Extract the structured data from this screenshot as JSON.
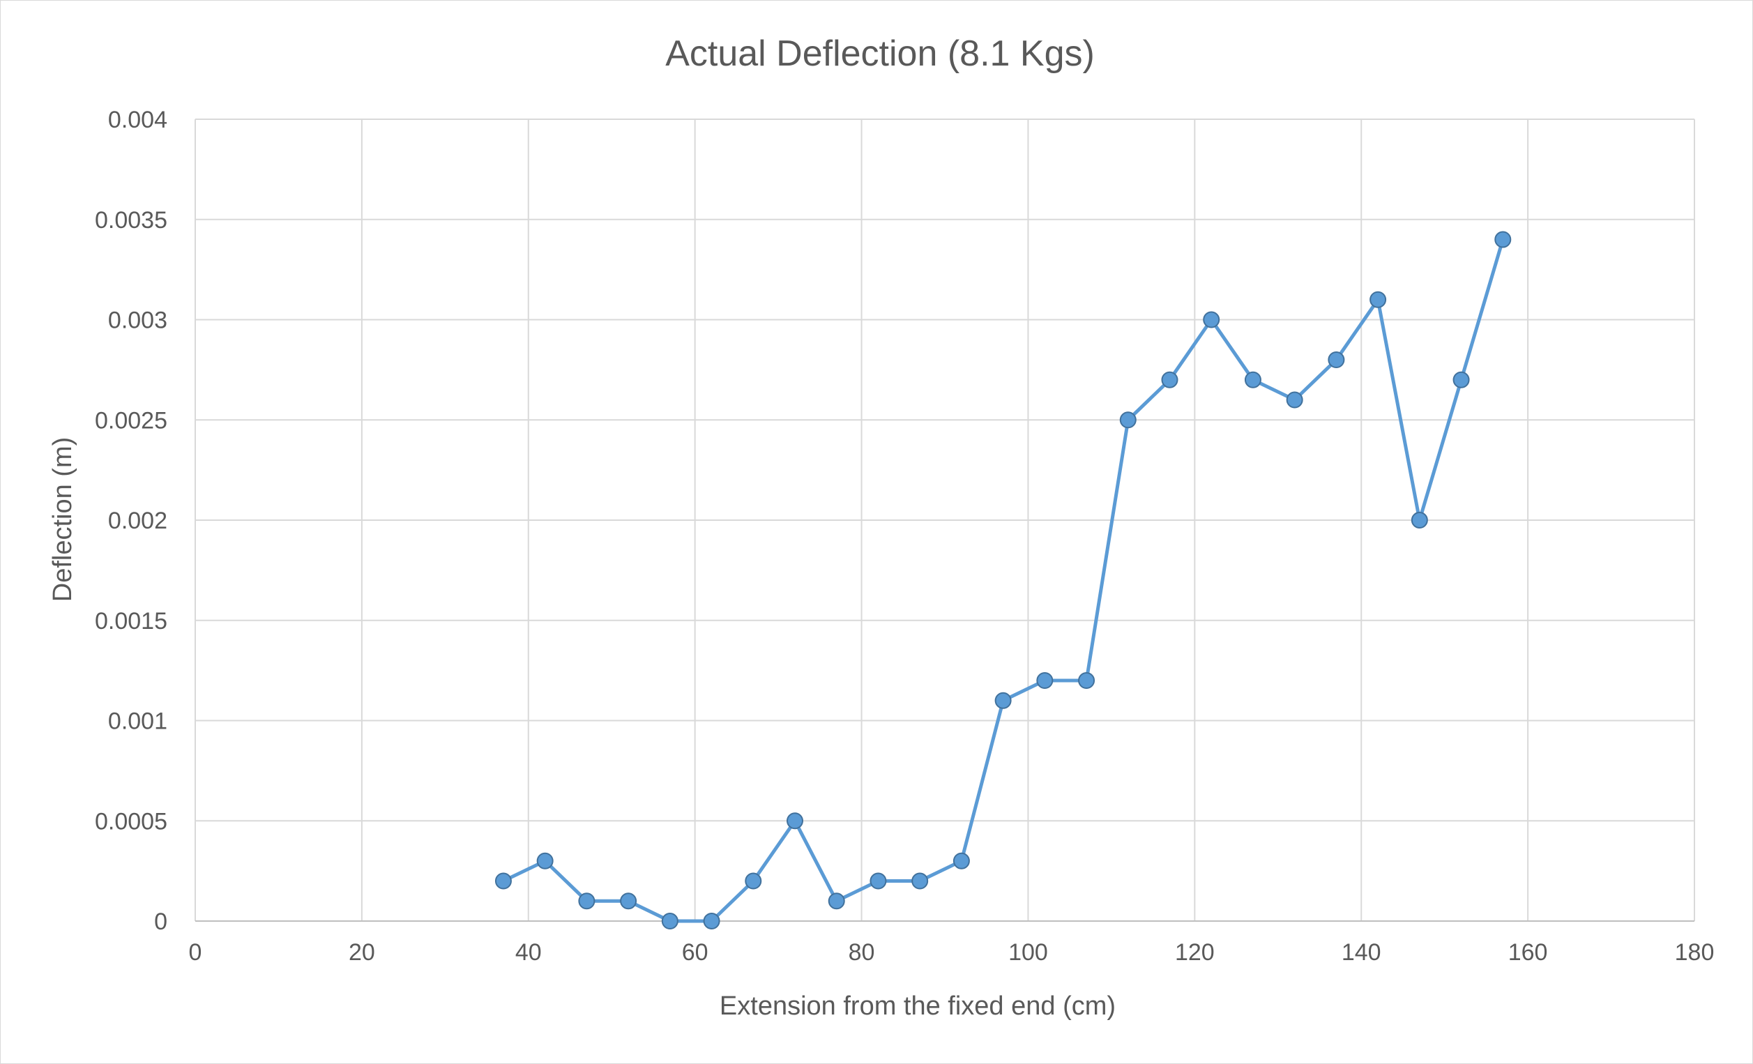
{
  "chart_data": {
    "type": "scatter",
    "title": "Actual Deflection (8.1 Kgs)",
    "xlabel": "Extension from the fixed end (cm)",
    "ylabel": "Deflection (m)",
    "xlim": [
      0,
      180
    ],
    "ylim": [
      0,
      0.004
    ],
    "x_ticks": [
      "0",
      "20",
      "40",
      "60",
      "80",
      "100",
      "120",
      "140",
      "160",
      "180"
    ],
    "y_ticks": [
      "0",
      "0.0005",
      "0.001",
      "0.0015",
      "0.002",
      "0.0025",
      "0.003",
      "0.0035",
      "0.004"
    ],
    "grid": true,
    "series": [
      {
        "x": [
          37,
          42,
          47,
          52,
          57,
          62,
          67,
          72,
          77,
          82,
          87,
          92,
          97,
          102,
          107,
          112,
          117,
          122,
          127,
          132,
          137,
          142,
          147,
          152,
          157
        ],
        "y": [
          0.0002,
          0.0003,
          0.0001,
          0.0001,
          0,
          0,
          0.0002,
          0.0005,
          0.0001,
          0.0002,
          0.0002,
          0.0003,
          0.0011,
          0.0012,
          0.0012,
          0.0025,
          0.0027,
          0.003,
          0.0027,
          0.0026,
          0.0028,
          0.0031,
          0.002,
          0.0027,
          0.0034
        ],
        "color": "#5b9bd5",
        "marker": "circle"
      }
    ]
  }
}
